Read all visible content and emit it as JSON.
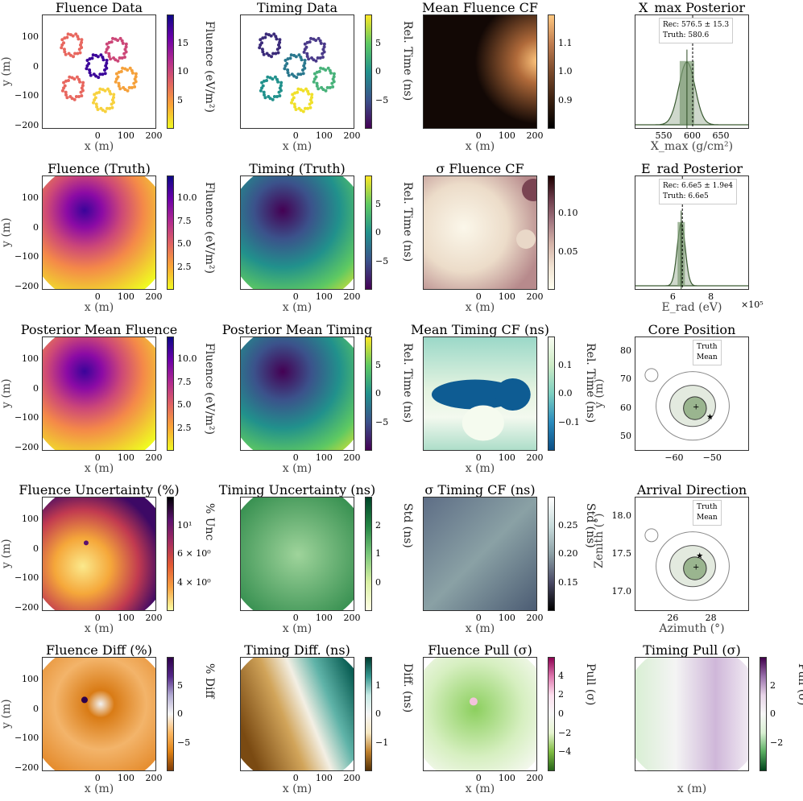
{
  "chart_data": [
    {
      "type": "scatter",
      "title": "Fluence Data",
      "xlabel": "x (m)",
      "ylabel": "y (m)",
      "cbar_label": "Fluence (eV/m²)",
      "cbar_ticks": [
        "5",
        "10",
        "15"
      ],
      "cmap": "plasma_r"
    },
    {
      "type": "scatter",
      "title": "Timing Data",
      "xlabel": "x (m)",
      "ylabel": "",
      "cbar_label": "Rel. Time (ns)",
      "cbar_ticks": [
        "−5",
        "0",
        "5"
      ],
      "cmap": "viridis"
    },
    {
      "type": "heatmap",
      "title": "Mean Fluence CF",
      "xlabel": "x (m)",
      "cbar_label": "",
      "cbar_ticks": [
        "0.9",
        "1.0",
        "1.1"
      ],
      "cmap": "copper"
    },
    {
      "type": "area",
      "title": "X_max Posterior",
      "xlabel": "X_max (g/cm²)",
      "x_ticks": [
        "550",
        "600",
        "650"
      ],
      "legend": [
        "Rec: 576.5 ± 15.3",
        "Truth: 580.6"
      ]
    },
    {
      "type": "heatmap",
      "title": "Fluence (Truth)",
      "xlabel": "x (m)",
      "ylabel": "y (m)",
      "cbar_label": "Fluence (eV/m²)",
      "cbar_ticks": [
        "2.5",
        "5.0",
        "7.5",
        "10.0"
      ]
    },
    {
      "type": "heatmap",
      "title": "Timing (Truth)",
      "xlabel": "x (m)",
      "cbar_label": "Rel. Time (ns)",
      "cbar_ticks": [
        "−5",
        "0",
        "5"
      ]
    },
    {
      "type": "heatmap",
      "title": "σ Fluence CF",
      "xlabel": "x (m)",
      "cbar_label": "",
      "cbar_ticks": [
        "0.05",
        "0.10"
      ]
    },
    {
      "type": "area",
      "title": "E_rad Posterior",
      "xlabel": "E_rad (eV)",
      "x_ticks": [
        "6",
        "8"
      ],
      "multiplier": "×10⁵",
      "legend": [
        "Rec: 6.6e5 ± 1.9e4",
        "Truth: 6.6e5"
      ]
    },
    {
      "type": "heatmap",
      "title": "Posterior Mean Fluence",
      "xlabel": "x (m)",
      "ylabel": "y (m)",
      "cbar_label": "Fluence (eV/m²)",
      "cbar_ticks": [
        "2.5",
        "5.0",
        "7.5",
        "10.0"
      ]
    },
    {
      "type": "heatmap",
      "title": "Posterior Mean Timing",
      "xlabel": "x (m)",
      "cbar_label": "Rel. Time (ns)",
      "cbar_ticks": [
        "−5",
        "0",
        "5"
      ]
    },
    {
      "type": "heatmap",
      "title": "Mean Timing CF (ns)",
      "xlabel": "x (m)",
      "cbar_label": "Rel. Time (ns)",
      "cbar_ticks": [
        "−0.1",
        "0.0",
        "0.1"
      ]
    },
    {
      "type": "scatter",
      "title": "Core Position",
      "xlabel": "",
      "ylabel": "y (m)",
      "x_ticks": [
        "−60",
        "−50"
      ],
      "y_ticks": [
        "50",
        "60",
        "70",
        "80"
      ],
      "legend": [
        "Truth",
        "Mean"
      ]
    },
    {
      "type": "heatmap",
      "title": "Fluence Uncertainty (%)",
      "xlabel": "x (m)",
      "ylabel": "y (m)",
      "cbar_label": "% Unc",
      "cbar_ticks": [
        "4 × 10⁰",
        "6 × 10⁰",
        "10¹"
      ]
    },
    {
      "type": "heatmap",
      "title": "Timing Uncertainty (ns)",
      "xlabel": "x (m)",
      "cbar_label": "Std (ns)",
      "cbar_ticks": [
        "0",
        "1",
        "2"
      ]
    },
    {
      "type": "heatmap",
      "title": "σ Timing CF (ns)",
      "xlabel": "x (m)",
      "cbar_label": "Std (ns)",
      "cbar_ticks": [
        "0.15",
        "0.20",
        "0.25"
      ]
    },
    {
      "type": "scatter",
      "title": "Arrival Direction",
      "xlabel": "Azimuth (°)",
      "ylabel": "Zenith (°)",
      "x_ticks": [
        "26",
        "28"
      ],
      "y_ticks": [
        "17.0",
        "17.5",
        "18.0"
      ],
      "legend": [
        "Truth",
        "Mean"
      ]
    },
    {
      "type": "heatmap",
      "title": "Fluence Diff (%)",
      "xlabel": "x (m)",
      "ylabel": "y (m)",
      "cbar_label": "% Diff",
      "cbar_ticks": [
        "−5",
        "0",
        "5"
      ]
    },
    {
      "type": "heatmap",
      "title": "Timing Diff. (ns)",
      "xlabel": "x (m)",
      "cbar_label": "Diff. (ns)",
      "cbar_ticks": [
        "−1",
        "0",
        "1"
      ]
    },
    {
      "type": "heatmap",
      "title": "Fluence Pull (σ)",
      "xlabel": "x (m)",
      "cbar_label": "Pull (σ)",
      "cbar_ticks": [
        "−4",
        "−2",
        "0",
        "2",
        "4"
      ]
    },
    {
      "type": "heatmap",
      "title": "Timing Pull (σ)",
      "xlabel": "x (m)",
      "cbar_label": "Pull (σ)",
      "cbar_ticks": [
        "−2",
        "0",
        "2"
      ]
    }
  ],
  "axes": {
    "xy_x_ticks": [
      "0",
      "100",
      "200"
    ],
    "xy_y_ticks": [
      "100",
      "0",
      "−100",
      "−200"
    ],
    "xy_xlim": [
      -200,
      210
    ],
    "xy_ylim": [
      -210,
      175
    ]
  }
}
